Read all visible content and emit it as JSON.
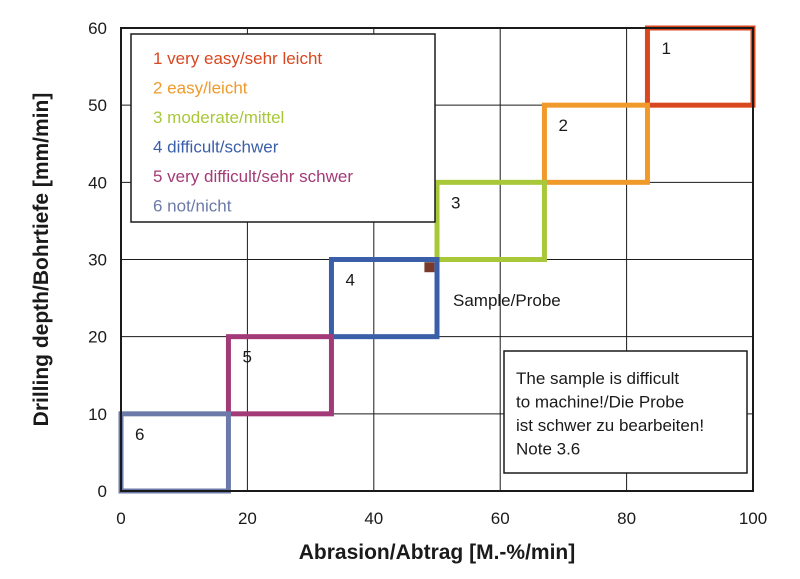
{
  "chart_data": {
    "type": "scatter",
    "xlabel": "Abrasion/Abtrag [M.-%/min]",
    "ylabel": "Drilling depth/Bohrtiefe [mm/min]",
    "xlim": [
      0,
      100
    ],
    "ylim": [
      0,
      60
    ],
    "xticks": [
      "0",
      "20",
      "40",
      "60",
      "80",
      "100"
    ],
    "yticks": [
      "0",
      "10",
      "20",
      "30",
      "40",
      "50",
      "60"
    ],
    "grid": true,
    "legend_position": "top-left",
    "legend": [
      {
        "label": "1  very easy/sehr leicht",
        "color": "#d9471f"
      },
      {
        "label": "2  easy/leicht",
        "color": "#ef9a2a"
      },
      {
        "label": "3  moderate/mittel",
        "color": "#a8c83a"
      },
      {
        "label": "4  difficult/schwer",
        "color": "#3a5fa8"
      },
      {
        "label": "5  very difficult/sehr schwer",
        "color": "#a33a78"
      },
      {
        "label": "6  not/nicht",
        "color": "#6b7aa8"
      }
    ],
    "regions": [
      {
        "label": "1",
        "x": [
          83.3,
          100
        ],
        "y": [
          50,
          60
        ],
        "color": "#d9471f"
      },
      {
        "label": "2",
        "x": [
          67,
          83.3
        ],
        "y": [
          40,
          50
        ],
        "color": "#ef9a2a"
      },
      {
        "label": "3",
        "x": [
          50,
          67
        ],
        "y": [
          30,
          40
        ],
        "color": "#a8c83a"
      },
      {
        "label": "4",
        "x": [
          33.3,
          50
        ],
        "y": [
          20,
          30
        ],
        "color": "#3a5fa8"
      },
      {
        "label": "5",
        "x": [
          17,
          33.3
        ],
        "y": [
          10,
          20
        ],
        "color": "#a33a78"
      },
      {
        "label": "6",
        "x": [
          0,
          17
        ],
        "y": [
          0,
          10
        ],
        "color": "#6b7aa8"
      }
    ],
    "sample": {
      "label": "Sample/Probe",
      "x": 48.8,
      "y": 29,
      "color": "#7a3a2a"
    },
    "note": [
      "The sample is difficult",
      "to machine!/Die Probe",
      "ist schwer zu bearbeiten!",
      "Note 3.6"
    ]
  }
}
